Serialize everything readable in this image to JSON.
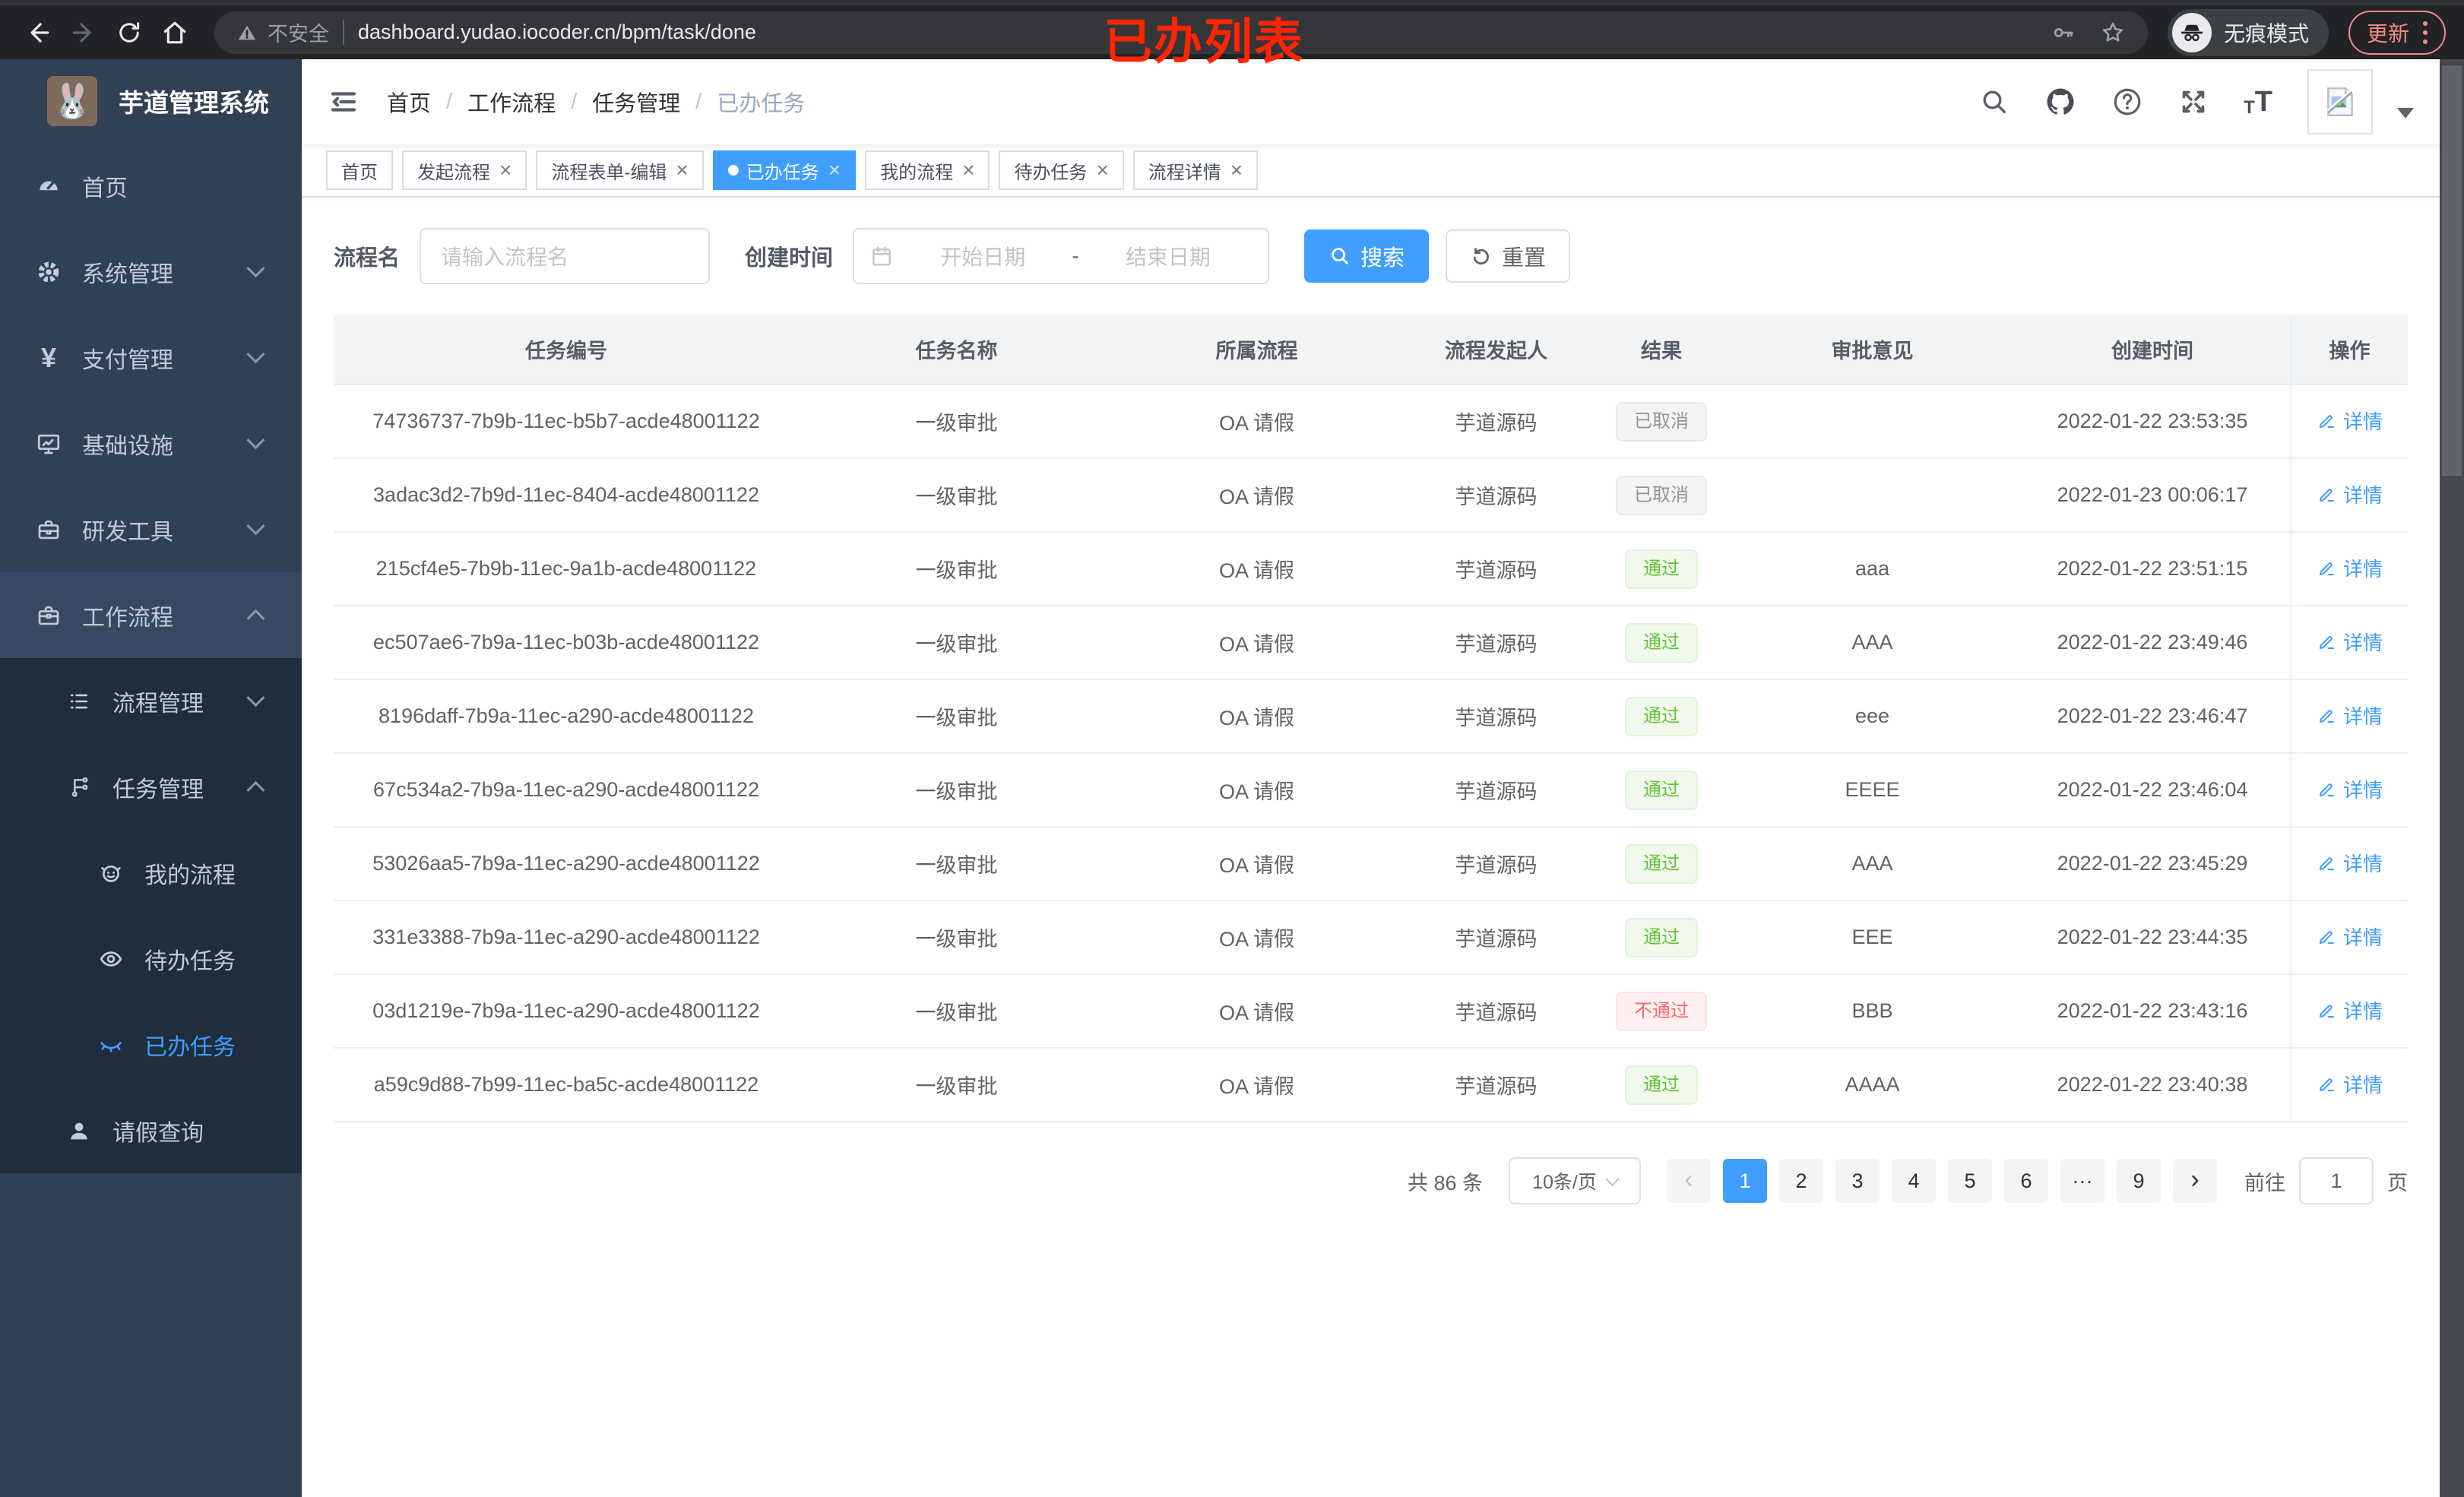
{
  "browser": {
    "security_label": "不安全",
    "url": "dashboard.yudao.iocoder.cn/bpm/task/done",
    "incognito_label": "无痕模式",
    "update_label": "更新"
  },
  "annotation": "已办列表",
  "sidebar": {
    "logo_title": "芋道管理系统",
    "menu": [
      {
        "label": "首页",
        "icon": "dashboard-icon",
        "level": 1,
        "arrow": "",
        "sub": false,
        "active": false,
        "open": false
      },
      {
        "label": "系统管理",
        "icon": "gear-icon",
        "level": 1,
        "arrow": "down",
        "sub": false,
        "active": false,
        "open": false
      },
      {
        "label": "支付管理",
        "icon": "yen-icon",
        "level": 1,
        "arrow": "down",
        "sub": false,
        "active": false,
        "open": false
      },
      {
        "label": "基础设施",
        "icon": "monitor-icon",
        "level": 1,
        "arrow": "down",
        "sub": false,
        "active": false,
        "open": false
      },
      {
        "label": "研发工具",
        "icon": "toolbox-icon",
        "level": 1,
        "arrow": "down",
        "sub": false,
        "active": false,
        "open": false
      },
      {
        "label": "工作流程",
        "icon": "briefcase-icon",
        "level": 1,
        "arrow": "up",
        "sub": false,
        "active": false,
        "open": true
      },
      {
        "label": "流程管理",
        "icon": "list-icon",
        "level": 2,
        "arrow": "down",
        "sub": true,
        "active": false,
        "open": false
      },
      {
        "label": "任务管理",
        "icon": "flow-icon",
        "level": 2,
        "arrow": "up",
        "sub": true,
        "active": false,
        "open": false
      },
      {
        "label": "我的流程",
        "icon": "robot-icon",
        "level": 3,
        "arrow": "",
        "sub": true,
        "active": false,
        "open": false
      },
      {
        "label": "待办任务",
        "icon": "eye-icon",
        "level": 3,
        "arrow": "",
        "sub": true,
        "active": false,
        "open": false
      },
      {
        "label": "已办任务",
        "icon": "eye-closed-icon",
        "level": 3,
        "arrow": "",
        "sub": true,
        "active": true,
        "open": false
      },
      {
        "label": "请假查询",
        "icon": "user-icon",
        "level": 2,
        "arrow": "",
        "sub": true,
        "active": false,
        "open": false
      }
    ]
  },
  "breadcrumb": [
    "首页",
    "工作流程",
    "任务管理",
    "已办任务"
  ],
  "tabs": [
    {
      "label": "首页",
      "closable": false,
      "active": false
    },
    {
      "label": "发起流程",
      "closable": true,
      "active": false
    },
    {
      "label": "流程表单-编辑",
      "closable": true,
      "active": false
    },
    {
      "label": "已办任务",
      "closable": true,
      "active": true
    },
    {
      "label": "我的流程",
      "closable": true,
      "active": false
    },
    {
      "label": "待办任务",
      "closable": true,
      "active": false
    },
    {
      "label": "流程详情",
      "closable": true,
      "active": false
    }
  ],
  "filters": {
    "name_label": "流程名",
    "name_placeholder": "请输入流程名",
    "date_label": "创建时间",
    "date_start_placeholder": "开始日期",
    "date_separator": "-",
    "date_end_placeholder": "结束日期",
    "search_label": "搜索",
    "reset_label": "重置"
  },
  "table": {
    "columns": [
      "任务编号",
      "任务名称",
      "所属流程",
      "流程发起人",
      "结果",
      "审批意见",
      "创建时间",
      "操作"
    ],
    "detail_label": "详情",
    "rows": [
      {
        "id": "74736737-7b9b-11ec-b5b7-acde48001122",
        "name": "一级审批",
        "process": "OA 请假",
        "starter": "芋道源码",
        "result": "已取消",
        "result_type": "info",
        "comment": "",
        "time": "2022-01-22 23:53:35"
      },
      {
        "id": "3adac3d2-7b9d-11ec-8404-acde48001122",
        "name": "一级审批",
        "process": "OA 请假",
        "starter": "芋道源码",
        "result": "已取消",
        "result_type": "info",
        "comment": "",
        "time": "2022-01-23 00:06:17"
      },
      {
        "id": "215cf4e5-7b9b-11ec-9a1b-acde48001122",
        "name": "一级审批",
        "process": "OA 请假",
        "starter": "芋道源码",
        "result": "通过",
        "result_type": "success",
        "comment": "aaa",
        "time": "2022-01-22 23:51:15"
      },
      {
        "id": "ec507ae6-7b9a-11ec-b03b-acde48001122",
        "name": "一级审批",
        "process": "OA 请假",
        "starter": "芋道源码",
        "result": "通过",
        "result_type": "success",
        "comment": "AAA",
        "time": "2022-01-22 23:49:46"
      },
      {
        "id": "8196daff-7b9a-11ec-a290-acde48001122",
        "name": "一级审批",
        "process": "OA 请假",
        "starter": "芋道源码",
        "result": "通过",
        "result_type": "success",
        "comment": "eee",
        "time": "2022-01-22 23:46:47"
      },
      {
        "id": "67c534a2-7b9a-11ec-a290-acde48001122",
        "name": "一级审批",
        "process": "OA 请假",
        "starter": "芋道源码",
        "result": "通过",
        "result_type": "success",
        "comment": "EEEE",
        "time": "2022-01-22 23:46:04"
      },
      {
        "id": "53026aa5-7b9a-11ec-a290-acde48001122",
        "name": "一级审批",
        "process": "OA 请假",
        "starter": "芋道源码",
        "result": "通过",
        "result_type": "success",
        "comment": "AAA",
        "time": "2022-01-22 23:45:29"
      },
      {
        "id": "331e3388-7b9a-11ec-a290-acde48001122",
        "name": "一级审批",
        "process": "OA 请假",
        "starter": "芋道源码",
        "result": "通过",
        "result_type": "success",
        "comment": "EEE",
        "time": "2022-01-22 23:44:35"
      },
      {
        "id": "03d1219e-7b9a-11ec-a290-acde48001122",
        "name": "一级审批",
        "process": "OA 请假",
        "starter": "芋道源码",
        "result": "不通过",
        "result_type": "danger",
        "comment": "BBB",
        "time": "2022-01-22 23:43:16"
      },
      {
        "id": "a59c9d88-7b99-11ec-ba5c-acde48001122",
        "name": "一级审批",
        "process": "OA 请假",
        "starter": "芋道源码",
        "result": "通过",
        "result_type": "success",
        "comment": "AAAA",
        "time": "2022-01-22 23:40:38"
      }
    ]
  },
  "pagination": {
    "total_label": "共 86 条",
    "page_size_label": "10条/页",
    "pages": [
      "1",
      "2",
      "3",
      "4",
      "5",
      "6",
      "···",
      "9"
    ],
    "active_page": "1",
    "prev_label": "‹",
    "next_label": "›",
    "goto_label": "前往",
    "goto_value": "1",
    "goto_unit": "页"
  },
  "colors": {
    "accent": "#409eff",
    "success": "#67c23a",
    "danger": "#f56c6c",
    "info": "#909399",
    "sidebar": "#304156",
    "submenu": "#1f2d3d"
  }
}
